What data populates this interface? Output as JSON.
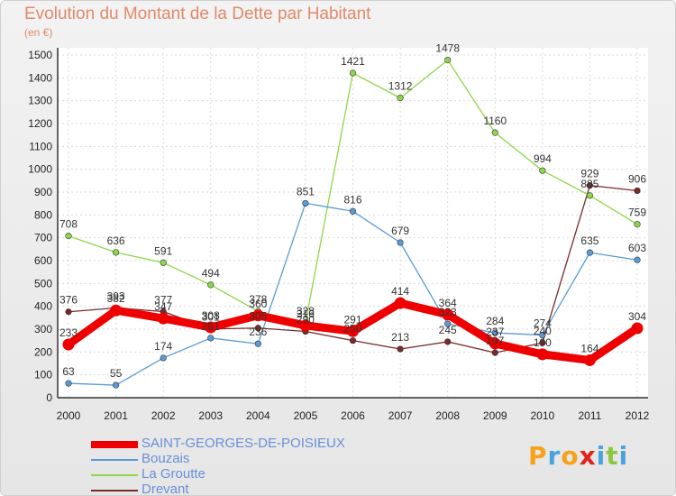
{
  "chart_data": {
    "type": "line",
    "title": "Evolution du Montant de la Dette par Habitant",
    "unit_label": "(en €)",
    "categories": [
      "2000",
      "2001",
      "2002",
      "2003",
      "2004",
      "2005",
      "2006",
      "2007",
      "2008",
      "2009",
      "2010",
      "2011",
      "2012"
    ],
    "ylim": [
      0,
      1500
    ],
    "yticks": [
      0,
      100,
      200,
      300,
      400,
      500,
      600,
      700,
      800,
      900,
      1000,
      1100,
      1200,
      1300,
      1400,
      1500
    ],
    "grid": true,
    "legend_placement": "bottom-left",
    "series": [
      {
        "name": "SAINT-GEORGES-DE-POISIEUX",
        "color": "#ee0000",
        "values": [
          233,
          382,
          347,
          308,
          360,
          316,
          291,
          414,
          364,
          237,
          190,
          164,
          304
        ],
        "labels": [
          "233",
          "382",
          "347",
          "308",
          "360",
          "316",
          "291",
          "414",
          "364",
          "237",
          "190",
          "164",
          "304"
        ]
      },
      {
        "name": "Bouzais",
        "color": "#5b9bd5",
        "values": [
          63,
          55,
          174,
          261,
          236,
          851,
          816,
          679,
          323,
          284,
          274,
          635,
          603
        ],
        "labels": [
          "63",
          "55",
          "174",
          "261",
          "236",
          "851",
          "816",
          "679",
          "323",
          "284",
          "274",
          "635",
          "603"
        ]
      },
      {
        "name": "La Groutte",
        "color": "#8ed64a",
        "values": [
          708,
          636,
          591,
          494,
          378,
          328,
          1421,
          1312,
          1478,
          1160,
          994,
          885,
          759
        ],
        "labels": [
          "708",
          "636",
          "591",
          "494",
          "378",
          "328",
          "1421",
          "1312",
          "1478",
          "1160",
          "994",
          "885",
          "759"
        ]
      },
      {
        "name": "Drevant",
        "color": "#7a2a2a",
        "values": [
          376,
          393,
          377,
          301,
          305,
          290,
          250,
          213,
          245,
          197,
          240,
          929,
          906
        ],
        "labels": [
          "376",
          "393",
          "377",
          "301",
          "305",
          "290",
          "250",
          "213",
          "245",
          "197",
          "240",
          "929",
          "906"
        ]
      }
    ]
  },
  "logo": {
    "text": "Proxiti",
    "colors": [
      "#f6a21c",
      "#4aa3df",
      "#f6a21c",
      "#e2231a",
      "#4aa3df",
      "#8dc63f",
      "#4aa3df"
    ]
  }
}
